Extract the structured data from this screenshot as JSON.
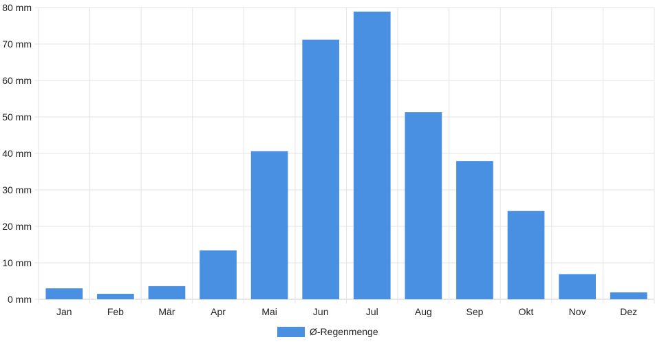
{
  "chart_data": {
    "type": "bar",
    "categories": [
      "Jan",
      "Feb",
      "Mär",
      "Apr",
      "Mai",
      "Jun",
      "Jul",
      "Aug",
      "Sep",
      "Okt",
      "Nov",
      "Dez"
    ],
    "series": [
      {
        "name": "Ø-Regenmenge",
        "color": "#4a90e2",
        "values": [
          3.0,
          1.5,
          3.6,
          13.4,
          40.6,
          71.2,
          78.9,
          51.3,
          37.9,
          24.2,
          6.9,
          1.9
        ]
      }
    ],
    "y_ticks": [
      "0 mm",
      "10 mm",
      "20 mm",
      "30 mm",
      "40 mm",
      "50 mm",
      "60 mm",
      "70 mm",
      "80 mm"
    ],
    "y_unit": "mm",
    "ylim": [
      0,
      80
    ],
    "grid": true,
    "legend_position": "bottom-center",
    "colors": {
      "grid": "#e3e3e3",
      "axis": "#cccccc",
      "text": "#222222"
    }
  }
}
